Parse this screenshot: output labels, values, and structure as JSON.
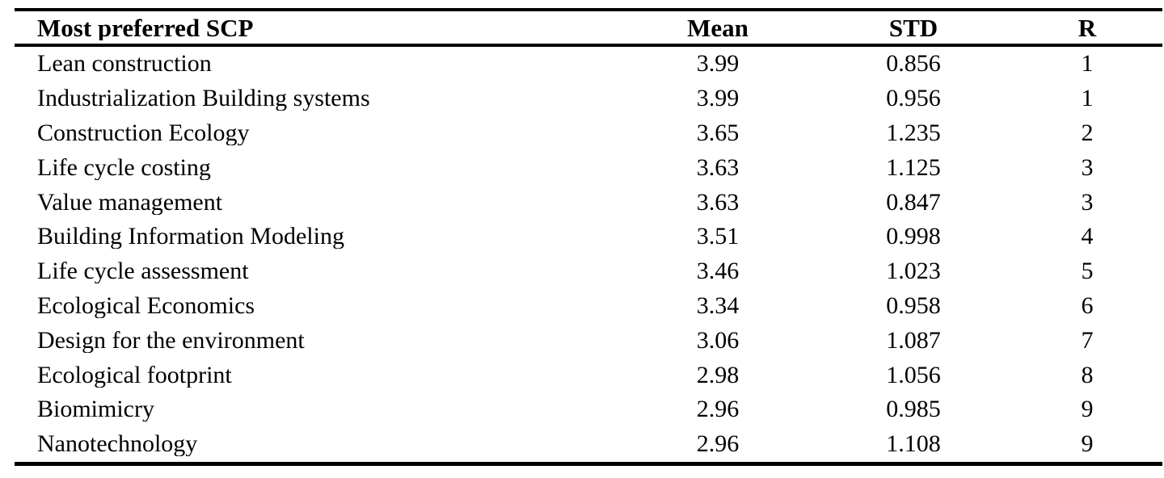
{
  "table": {
    "columns": {
      "name": "Most preferred SCP",
      "mean": "Mean",
      "std": "STD",
      "r": "R"
    },
    "rows": [
      {
        "name": "Lean construction",
        "mean": "3.99",
        "std": "0.856",
        "r": "1"
      },
      {
        "name": "Industrialization Building systems",
        "mean": "3.99",
        "std": "0.956",
        "r": "1"
      },
      {
        "name": "Construction Ecology",
        "mean": "3.65",
        "std": "1.235",
        "r": "2"
      },
      {
        "name": "Life cycle costing",
        "mean": "3.63",
        "std": "1.125",
        "r": "3"
      },
      {
        "name": "Value management",
        "mean": "3.63",
        "std": "0.847",
        "r": "3"
      },
      {
        "name": "Building Information Modeling",
        "mean": "3.51",
        "std": "0.998",
        "r": "4"
      },
      {
        "name": "Life cycle assessment",
        "mean": "3.46",
        "std": "1.023",
        "r": "5"
      },
      {
        "name": "Ecological Economics",
        "mean": "3.34",
        "std": "0.958",
        "r": "6"
      },
      {
        "name": "Design for the environment",
        "mean": "3.06",
        "std": "1.087",
        "r": "7"
      },
      {
        "name": "Ecological footprint",
        "mean": "2.98",
        "std": "1.056",
        "r": "8"
      },
      {
        "name": "Biomimicry",
        "mean": "2.96",
        "std": "0.985",
        "r": "9"
      },
      {
        "name": "Nanotechnology",
        "mean": "2.96",
        "std": "1.108",
        "r": "9"
      }
    ]
  },
  "colors": {
    "background": "#ffffff",
    "text": "#000000",
    "rule": "#000000"
  }
}
